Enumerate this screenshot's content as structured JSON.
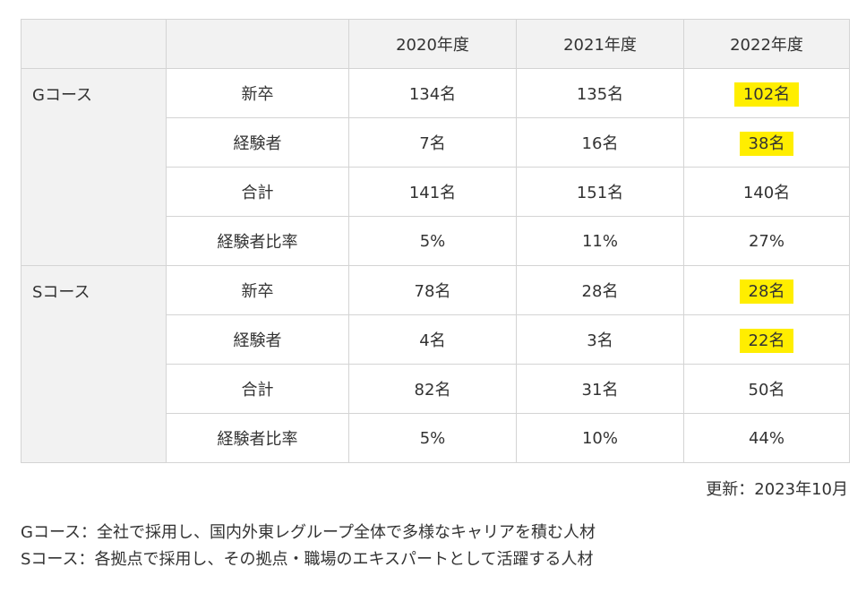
{
  "table": {
    "headers": [
      "",
      "",
      "2020年度",
      "2021年度",
      "2022年度"
    ],
    "groups": [
      {
        "course": "Gコース",
        "rows": [
          {
            "label": "新卒",
            "y2020": "134名",
            "y2021": "135名",
            "y2022": "102名"
          },
          {
            "label": "経験者",
            "y2020": "7名",
            "y2021": "16名",
            "y2022": "38名"
          },
          {
            "label": "合計",
            "y2020": "141名",
            "y2021": "151名",
            "y2022": "140名"
          },
          {
            "label": "経験者比率",
            "y2020": "5%",
            "y2021": "11%",
            "y2022": "27%"
          }
        ]
      },
      {
        "course": "Sコース",
        "rows": [
          {
            "label": "新卒",
            "y2020": "78名",
            "y2021": "28名",
            "y2022": "28名"
          },
          {
            "label": "経験者",
            "y2020": "4名",
            "y2021": "3名",
            "y2022": "22名"
          },
          {
            "label": "合計",
            "y2020": "82名",
            "y2021": "31名",
            "y2022": "50名"
          },
          {
            "label": "経験者比率",
            "y2020": "5%",
            "y2021": "10%",
            "y2022": "44%"
          }
        ]
      }
    ],
    "highlight_color": "#ffee00"
  },
  "updated": "更新：2023年10月",
  "notes": [
    "Gコース：全社で採用し、国内外東レグループ全体で多様なキャリアを積む人材",
    "Sコース：各拠点で採用し、その拠点・職場のエキスパートとして活躍する人材"
  ]
}
